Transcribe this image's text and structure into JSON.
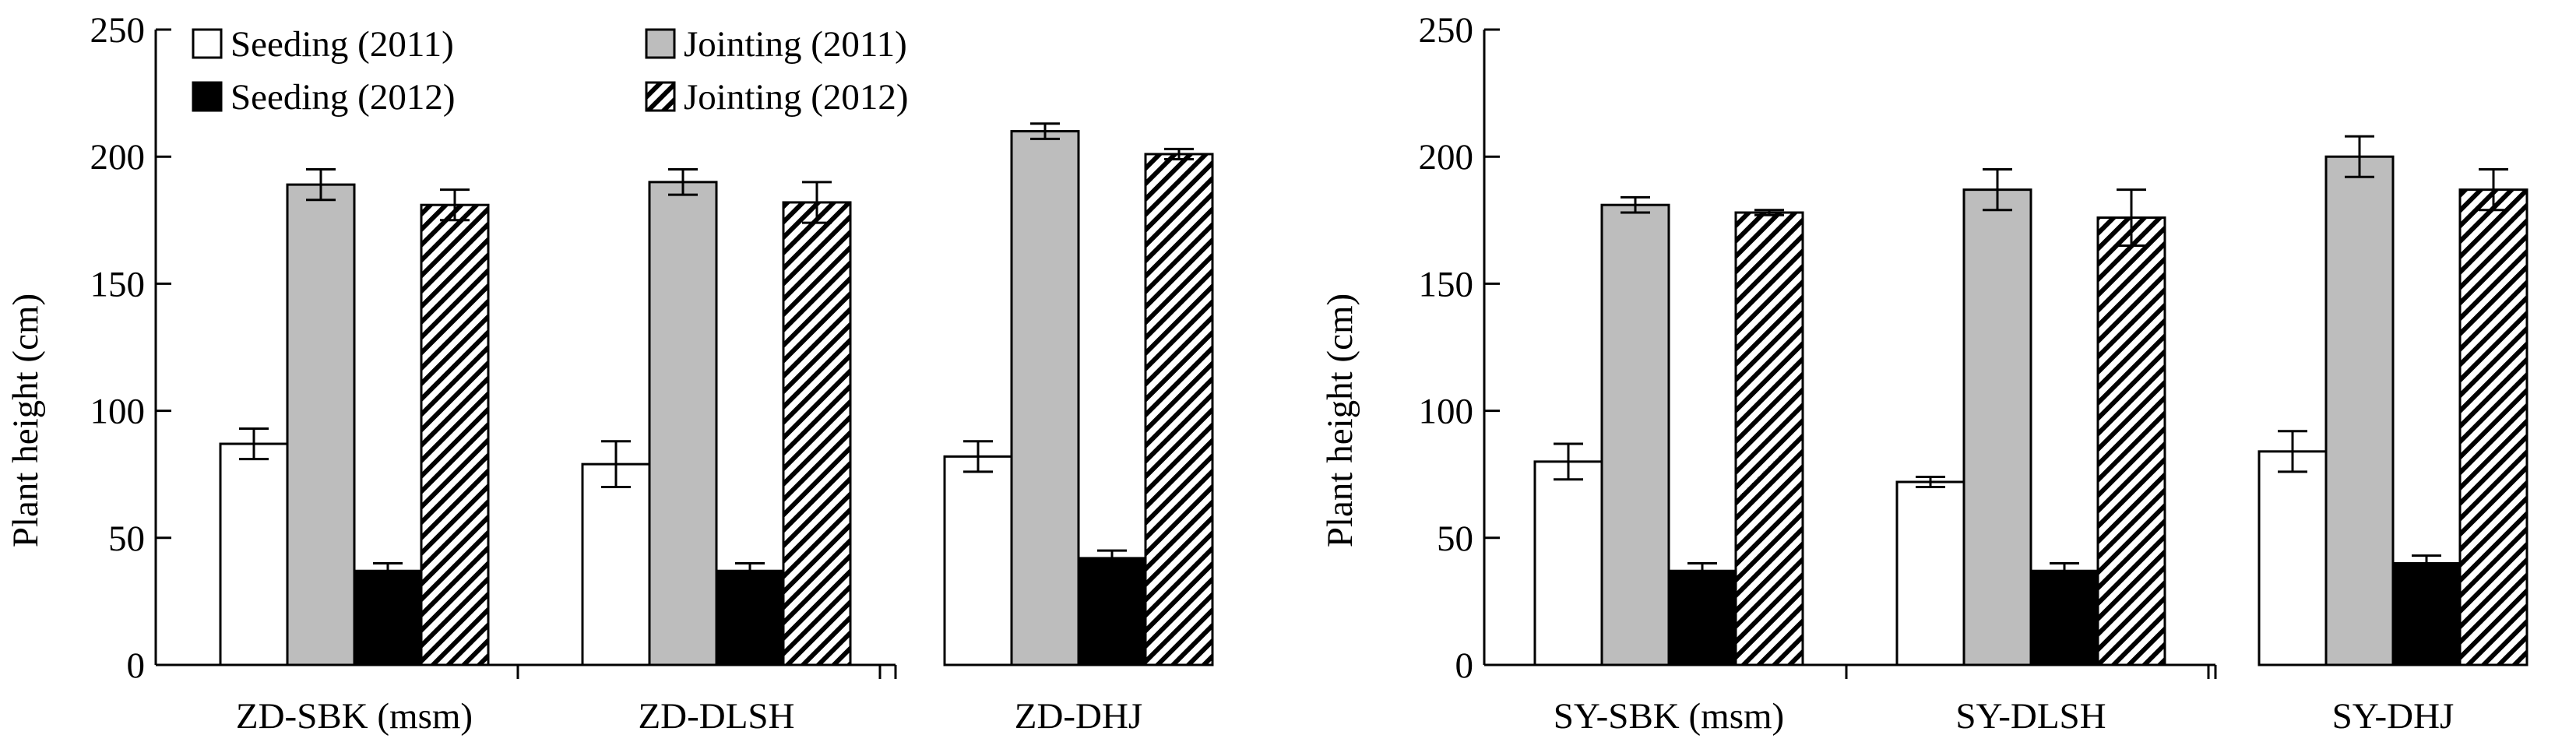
{
  "chart_data": [
    {
      "type": "bar",
      "title": "",
      "xlabel": "",
      "ylabel": "Plant height (cm)",
      "ylim": [
        0,
        250
      ],
      "yticks": [
        0,
        50,
        100,
        150,
        200,
        250
      ],
      "categories": [
        "ZD-SBK (msm)",
        "ZD-DLSH",
        "ZD-DHJ"
      ],
      "legend_position": "top-left",
      "series": [
        {
          "name": "Seeding (2011)",
          "style": "white",
          "values": [
            87,
            79,
            82
          ],
          "errors": [
            6,
            9,
            6
          ]
        },
        {
          "name": "Jointing (2011)",
          "style": "gray",
          "values": [
            189,
            190,
            210
          ],
          "errors": [
            6,
            5,
            3
          ]
        },
        {
          "name": "Seeding (2012)",
          "style": "black",
          "values": [
            37,
            37,
            42
          ],
          "errors": [
            3,
            3,
            3
          ]
        },
        {
          "name": "Jointing (2012)",
          "style": "hatched",
          "values": [
            181,
            182,
            201
          ],
          "errors": [
            6,
            8,
            2
          ]
        }
      ]
    },
    {
      "type": "bar",
      "title": "",
      "xlabel": "",
      "ylabel": "Plant height (cm)",
      "ylim": [
        0,
        250
      ],
      "yticks": [
        0,
        50,
        100,
        150,
        200,
        250
      ],
      "categories": [
        "SY-SBK (msm)",
        "SY-DLSH",
        "SY-DHJ"
      ],
      "series": [
        {
          "name": "Seeding (2011)",
          "style": "white",
          "values": [
            80,
            72,
            84
          ],
          "errors": [
            7,
            2,
            8
          ]
        },
        {
          "name": "Jointing (2011)",
          "style": "gray",
          "values": [
            181,
            187,
            200
          ],
          "errors": [
            3,
            8,
            8
          ]
        },
        {
          "name": "Seeding (2012)",
          "style": "black",
          "values": [
            37,
            37,
            40
          ],
          "errors": [
            3,
            3,
            3
          ]
        },
        {
          "name": "Jointing (2012)",
          "style": "hatched",
          "values": [
            178,
            176,
            187
          ],
          "errors": [
            1,
            11,
            8
          ]
        }
      ]
    }
  ],
  "colors": {
    "gray_bar": "#bdbdbd",
    "black_bar": "#000000",
    "white_bar": "#ffffff",
    "stroke": "#000000"
  }
}
